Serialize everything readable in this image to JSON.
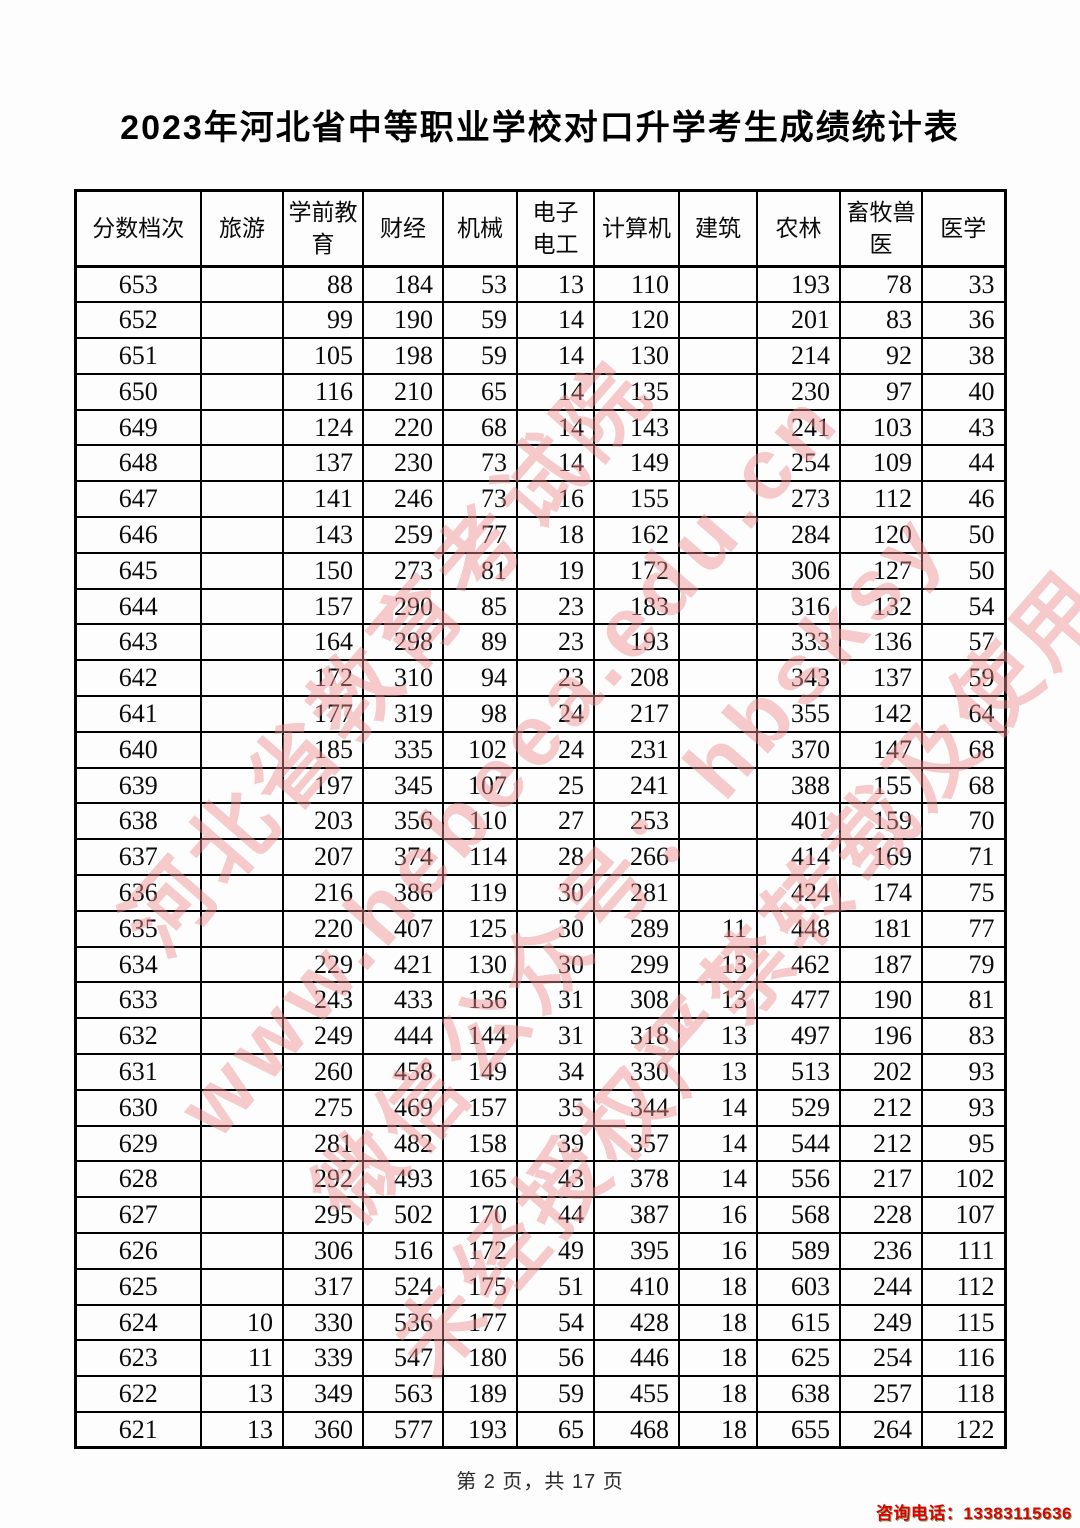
{
  "page": {
    "title": "2023年河北省中等职业学校对口升学考生成绩统计表",
    "footer": "第 2 页，共 17 页",
    "contact": "咨询电话：13383115636"
  },
  "watermark": {
    "color": "#ee8c8c",
    "lines": [
      "河北省教育考试院",
      "www.hebeea.edu.cn",
      "微信公众号：hbsksy",
      "未经授权严禁转载及使用"
    ]
  },
  "table": {
    "headers": [
      "分数档次",
      "旅游",
      "学前教育",
      "财经",
      "机械",
      "电子电工",
      "计算机",
      "建筑",
      "农林",
      "畜牧兽医",
      "医学"
    ],
    "rows": [
      [
        "653",
        "",
        "88",
        "184",
        "53",
        "13",
        "110",
        "",
        "193",
        "78",
        "33"
      ],
      [
        "652",
        "",
        "99",
        "190",
        "59",
        "14",
        "120",
        "",
        "201",
        "83",
        "36"
      ],
      [
        "651",
        "",
        "105",
        "198",
        "59",
        "14",
        "130",
        "",
        "214",
        "92",
        "38"
      ],
      [
        "650",
        "",
        "116",
        "210",
        "65",
        "14",
        "135",
        "",
        "230",
        "97",
        "40"
      ],
      [
        "649",
        "",
        "124",
        "220",
        "68",
        "14",
        "143",
        "",
        "241",
        "103",
        "43"
      ],
      [
        "648",
        "",
        "137",
        "230",
        "73",
        "14",
        "149",
        "",
        "254",
        "109",
        "44"
      ],
      [
        "647",
        "",
        "141",
        "246",
        "73",
        "16",
        "155",
        "",
        "273",
        "112",
        "46"
      ],
      [
        "646",
        "",
        "143",
        "259",
        "77",
        "18",
        "162",
        "",
        "284",
        "120",
        "50"
      ],
      [
        "645",
        "",
        "150",
        "273",
        "81",
        "19",
        "172",
        "",
        "306",
        "127",
        "50"
      ],
      [
        "644",
        "",
        "157",
        "290",
        "85",
        "23",
        "183",
        "",
        "316",
        "132",
        "54"
      ],
      [
        "643",
        "",
        "164",
        "298",
        "89",
        "23",
        "193",
        "",
        "333",
        "136",
        "57"
      ],
      [
        "642",
        "",
        "172",
        "310",
        "94",
        "23",
        "208",
        "",
        "343",
        "137",
        "59"
      ],
      [
        "641",
        "",
        "177",
        "319",
        "98",
        "24",
        "217",
        "",
        "355",
        "142",
        "64"
      ],
      [
        "640",
        "",
        "185",
        "335",
        "102",
        "24",
        "231",
        "",
        "370",
        "147",
        "68"
      ],
      [
        "639",
        "",
        "197",
        "345",
        "107",
        "25",
        "241",
        "",
        "388",
        "155",
        "68"
      ],
      [
        "638",
        "",
        "203",
        "356",
        "110",
        "27",
        "253",
        "",
        "401",
        "159",
        "70"
      ],
      [
        "637",
        "",
        "207",
        "374",
        "114",
        "28",
        "266",
        "",
        "414",
        "169",
        "71"
      ],
      [
        "636",
        "",
        "216",
        "386",
        "119",
        "30",
        "281",
        "",
        "424",
        "174",
        "75"
      ],
      [
        "635",
        "",
        "220",
        "407",
        "125",
        "30",
        "289",
        "11",
        "448",
        "181",
        "77"
      ],
      [
        "634",
        "",
        "229",
        "421",
        "130",
        "30",
        "299",
        "13",
        "462",
        "187",
        "79"
      ],
      [
        "633",
        "",
        "243",
        "433",
        "136",
        "31",
        "308",
        "13",
        "477",
        "190",
        "81"
      ],
      [
        "632",
        "",
        "249",
        "444",
        "144",
        "31",
        "318",
        "13",
        "497",
        "196",
        "83"
      ],
      [
        "631",
        "",
        "260",
        "458",
        "149",
        "34",
        "330",
        "13",
        "513",
        "202",
        "93"
      ],
      [
        "630",
        "",
        "275",
        "469",
        "157",
        "35",
        "344",
        "14",
        "529",
        "212",
        "93"
      ],
      [
        "629",
        "",
        "281",
        "482",
        "158",
        "39",
        "357",
        "14",
        "544",
        "212",
        "95"
      ],
      [
        "628",
        "",
        "292",
        "493",
        "165",
        "43",
        "378",
        "14",
        "556",
        "217",
        "102"
      ],
      [
        "627",
        "",
        "295",
        "502",
        "170",
        "44",
        "387",
        "16",
        "568",
        "228",
        "107"
      ],
      [
        "626",
        "",
        "306",
        "516",
        "172",
        "49",
        "395",
        "16",
        "589",
        "236",
        "111"
      ],
      [
        "625",
        "",
        "317",
        "524",
        "175",
        "51",
        "410",
        "18",
        "603",
        "244",
        "112"
      ],
      [
        "624",
        "10",
        "330",
        "536",
        "177",
        "54",
        "428",
        "18",
        "615",
        "249",
        "115"
      ],
      [
        "623",
        "11",
        "339",
        "547",
        "180",
        "56",
        "446",
        "18",
        "625",
        "254",
        "116"
      ],
      [
        "622",
        "13",
        "349",
        "563",
        "189",
        "59",
        "455",
        "18",
        "638",
        "257",
        "118"
      ],
      [
        "621",
        "13",
        "360",
        "577",
        "193",
        "65",
        "468",
        "18",
        "655",
        "264",
        "122"
      ]
    ]
  }
}
